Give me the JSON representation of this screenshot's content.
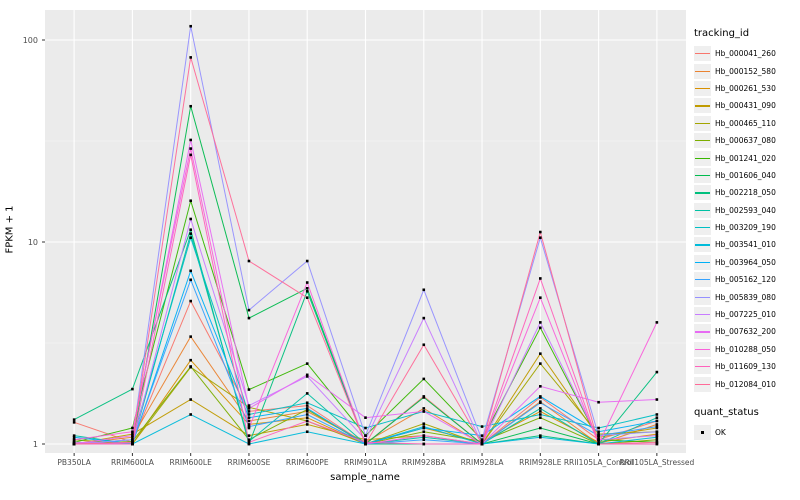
{
  "figure": {
    "background": "#FFFFFF",
    "panel_background": "#EBEBEB",
    "grid_color": "#FFFFFF",
    "tick_color": "#333333",
    "tick_label_color": "#4D4D4D",
    "point_color": "#000000"
  },
  "axes": {
    "y_title": "FPKM + 1",
    "x_title": "sample_name",
    "y_scale": "log10",
    "y_ticks": [
      {
        "label": "1",
        "value": 1
      },
      {
        "label": "10",
        "value": 10
      },
      {
        "label": "100",
        "value": 100
      }
    ],
    "y_minor_ticks": [
      3.1623,
      31.623
    ]
  },
  "legend": {
    "tracking_title": "tracking_id",
    "quant_title": "quant_status",
    "quant_items": [
      {
        "label": "OK",
        "marker": "black-square"
      }
    ]
  },
  "chart_data": {
    "type": "line",
    "title": "",
    "xlabel": "sample_name",
    "ylabel": "FPKM + 1",
    "yscale": "log10",
    "ylim": [
      1,
      140
    ],
    "grid": true,
    "legend_position": "right",
    "point_marker": "square",
    "x_categories": [
      "PB350LA",
      "RRIM600LA",
      "RRIM600LE",
      "RRIM600SE",
      "RRIM600PE",
      "RRIM901LA",
      "RRIM928BA",
      "RRIM928LA",
      "RRIM928LE",
      "RRII105LA_Control",
      "RRII105LA_Stressed"
    ],
    "series": [
      {
        "name": "Hb_000041_260",
        "color": "#F8766D",
        "values": [
          1.28,
          1.02,
          5.1,
          1.45,
          1.55,
          1.0,
          1.72,
          1.0,
          1.7,
          1.05,
          1.3
        ]
      },
      {
        "name": "Hb_000152_580",
        "color": "#EA8331",
        "values": [
          1.0,
          1.08,
          3.4,
          1.3,
          1.45,
          1.02,
          1.5,
          1.0,
          1.62,
          1.0,
          1.25
        ]
      },
      {
        "name": "Hb_000261_530",
        "color": "#D89000",
        "values": [
          1.02,
          1.0,
          2.6,
          1.25,
          1.35,
          1.0,
          1.2,
          1.02,
          1.45,
          1.02,
          1.12
        ]
      },
      {
        "name": "Hb_000431_090",
        "color": "#C09B00",
        "values": [
          1.0,
          1.12,
          1.66,
          1.1,
          1.25,
          1.05,
          1.1,
          1.0,
          2.8,
          1.08,
          1.2
        ]
      },
      {
        "name": "Hb_000465_110",
        "color": "#A3A500",
        "values": [
          1.05,
          1.0,
          2.4,
          1.52,
          1.3,
          1.0,
          1.26,
          1.0,
          2.5,
          1.12,
          1.15
        ]
      },
      {
        "name": "Hb_000637_080",
        "color": "#7CAE00",
        "values": [
          1.0,
          1.03,
          2.42,
          1.05,
          1.48,
          1.0,
          1.15,
          1.03,
          1.35,
          1.0,
          1.05
        ]
      },
      {
        "name": "Hb_001241_020",
        "color": "#39B600",
        "values": [
          1.02,
          1.2,
          16,
          1.86,
          2.5,
          1.1,
          2.1,
          1.05,
          3.76,
          1.05,
          1.02
        ]
      },
      {
        "name": "Hb_001606_040",
        "color": "#00BB4E",
        "values": [
          1.0,
          1.0,
          47,
          4.2,
          5.9,
          1.0,
          1.7,
          1.0,
          1.2,
          1.0,
          1.0
        ]
      },
      {
        "name": "Hb_002218_050",
        "color": "#00BF7D",
        "values": [
          1.32,
          1.87,
          11.5,
          1.0,
          5.7,
          1.0,
          1.0,
          1.0,
          1.1,
          1.0,
          2.27
        ]
      },
      {
        "name": "Hb_002593_040",
        "color": "#00C1A3",
        "values": [
          1.1,
          1.0,
          11,
          1.03,
          1.78,
          1.0,
          1.08,
          1.0,
          1.5,
          1.0,
          1.35
        ]
      },
      {
        "name": "Hb_003209_190",
        "color": "#00BFC4",
        "values": [
          1.0,
          1.05,
          10.5,
          1.4,
          1.6,
          1.2,
          1.45,
          1.22,
          1.4,
          1.2,
          1.4
        ]
      },
      {
        "name": "Hb_003541_010",
        "color": "#00BBDA",
        "values": [
          1.0,
          1.0,
          1.4,
          1.0,
          1.15,
          1.0,
          1.22,
          1.0,
          1.08,
          1.0,
          1.08
        ]
      },
      {
        "name": "Hb_003964_050",
        "color": "#00B0F6",
        "values": [
          1.08,
          1.0,
          7.2,
          1.35,
          1.5,
          1.0,
          1.2,
          1.1,
          1.72,
          1.15,
          1.3
        ]
      },
      {
        "name": "Hb_005162_120",
        "color": "#35A2FF",
        "values": [
          1.0,
          1.02,
          6.5,
          1.22,
          1.4,
          1.0,
          1.05,
          1.0,
          1.6,
          1.1,
          1.22
        ]
      },
      {
        "name": "Hb_005839_080",
        "color": "#9590FF",
        "values": [
          1.0,
          1.05,
          117,
          4.6,
          8.05,
          1.1,
          5.8,
          1.05,
          10.5,
          1.1,
          1.15
        ]
      },
      {
        "name": "Hb_007225_010",
        "color": "#C77CFF",
        "values": [
          1.02,
          1.0,
          13,
          1.55,
          2.16,
          1.05,
          4.2,
          1.0,
          4.0,
          1.05,
          1.1
        ]
      },
      {
        "name": "Hb_007632_200",
        "color": "#E76BF3",
        "values": [
          1.0,
          1.1,
          32,
          1.5,
          2.2,
          1.35,
          1.45,
          1.0,
          1.93,
          1.61,
          1.66
        ]
      },
      {
        "name": "Hb_010288_050",
        "color": "#FA62DB",
        "values": [
          1.05,
          1.15,
          29,
          1.2,
          6.3,
          1.0,
          1.1,
          1.0,
          5.3,
          1.0,
          4.0
        ]
      },
      {
        "name": "Hb_011609_130",
        "color": "#FF62BC",
        "values": [
          1.0,
          1.0,
          27,
          1.02,
          1.3,
          1.02,
          1.0,
          1.0,
          6.6,
          1.0,
          1.0
        ]
      },
      {
        "name": "Hb_012084_010",
        "color": "#FF6A98",
        "values": [
          1.0,
          1.02,
          82,
          8.05,
          5.3,
          1.0,
          3.1,
          1.0,
          11.2,
          1.0,
          1.02
        ]
      }
    ]
  }
}
